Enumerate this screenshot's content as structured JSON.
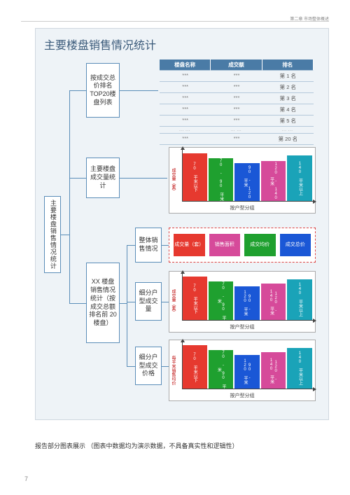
{
  "header_right": "第二章  市场整体概述",
  "title": "主要楼盘销售情况统计",
  "nodes": {
    "root": "主要楼盘销售情况统计",
    "n1": "按成交总价排名TOP20楼盘列表",
    "n2": "主要楼盘成交量统计",
    "n3": "XX 楼盘销售情况统计（按成交总额排名前 20楼盘）",
    "n3a": "整体销售情况",
    "n3b": "细分户型成交量",
    "n3c": "细分户型成交价格"
  },
  "table": {
    "headers": [
      "楼盘名称",
      "成交额",
      "排名"
    ],
    "ranks": [
      "第 1 名",
      "第 2 名",
      "第 3 名",
      "第 4 名",
      "第 5 名"
    ],
    "last_rank": "第 20 名",
    "placeholder": "***"
  },
  "chart_common": {
    "categories": [
      "70 平米以下",
      "70 - 90 平米",
      "90 - 120 平米",
      "120 - 140 平米",
      "140 平米以上"
    ],
    "colors": [
      "#e6392f",
      "#1fa02f",
      "#1a57d6",
      "#d64a9a",
      "#1aa3b8"
    ],
    "heights": [
      95,
      85,
      75,
      80,
      90
    ],
    "xlabel": "按户型分组"
  },
  "chart1_ylabel": "成交量（套）",
  "chart3_ylabel": "成交量（套）",
  "chart4_ylabel": "每平米销售均价",
  "dashed_box": {
    "items": [
      "成交量（套）",
      "销售面积",
      "成交均价",
      "成交总价"
    ],
    "colors": [
      "#e6392f",
      "#d64a9a",
      "#1fa02f",
      "#1a57d6"
    ]
  },
  "footer": "报告部分图表展示    （图表中数据均为演示数据，不具备真实性和逻辑性）",
  "page_number": "7"
}
